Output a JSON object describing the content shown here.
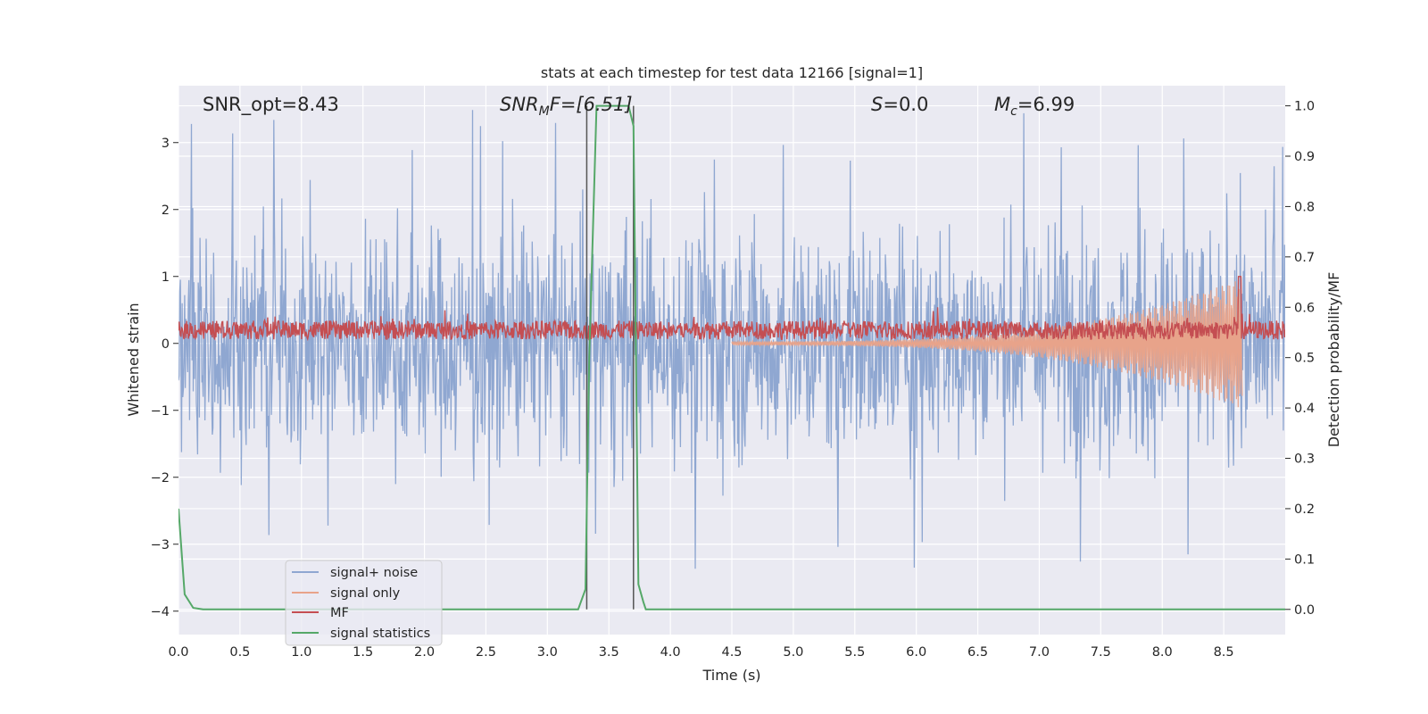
{
  "chart_data": {
    "type": "line",
    "title": "stats at each timestep for test data 12166 [signal=1]",
    "xlabel": "Time (s)",
    "ylabel_left": "Whitened strain",
    "ylabel_right": "Detection probability/MF",
    "xlim": [
      0.0,
      9.0
    ],
    "ylim_left": [
      -4.35,
      3.85
    ],
    "ylim_right": [
      -0.05,
      1.04
    ],
    "xticks": [
      "0.0",
      "0.5",
      "1.0",
      "1.5",
      "2.0",
      "2.5",
      "3.0",
      "3.5",
      "4.0",
      "4.5",
      "5.0",
      "5.5",
      "6.0",
      "6.5",
      "7.0",
      "7.5",
      "8.0",
      "8.5"
    ],
    "yticks_left": [
      "3",
      "2",
      "1",
      "0",
      "−1",
      "−2",
      "−3",
      "−4"
    ],
    "yticks_right": [
      "1.0",
      "0.9",
      "0.8",
      "0.7",
      "0.6",
      "0.5",
      "0.4",
      "0.3",
      "0.2",
      "0.1",
      "0.0"
    ],
    "grid": true,
    "annotations": {
      "snr_opt": "SNR_opt=8.43",
      "snr_mf_main": "SNR",
      "snr_mf_sub": "M",
      "snr_mf_rest": "F=[6.51]",
      "s_main": "S",
      "s_rest": "=0.0",
      "mc_main": "M",
      "mc_sub": "c",
      "mc_rest": "=6.99"
    },
    "vertical_markers": [
      3.32,
      3.7
    ],
    "legend": {
      "placement": "lower-left",
      "entries": [
        "signal+ noise",
        "signal only",
        "MF",
        "signal statistics"
      ]
    },
    "series": [
      {
        "name": "signal+ noise",
        "color": "#8fa7d1",
        "description_axis": "left",
        "envelope": {
          "typical": 1.9,
          "max_peak": 3.5,
          "min_peak": -3.95
        }
      },
      {
        "name": "signal only",
        "color": "#e8a38a",
        "description_axis": "left",
        "chirp": {
          "start": 4.5,
          "end": 8.65,
          "peak_amplitude": 0.95
        }
      },
      {
        "name": "MF",
        "color": "#c44e52",
        "description_axis": "left",
        "baseline": 0.2,
        "spike": {
          "x": 8.63,
          "y": 1.0
        }
      },
      {
        "name": "signal statistics",
        "color": "#55a868",
        "axis": "right",
        "x": [
          0.0,
          0.05,
          0.12,
          0.2,
          0.3,
          1.0,
          2.0,
          3.0,
          3.25,
          3.31,
          3.34,
          3.4,
          3.5,
          3.6,
          3.66,
          3.7,
          3.74,
          3.78,
          3.8,
          4.0,
          5.0,
          6.0,
          7.0,
          8.0,
          9.0
        ],
        "y": [
          0.2,
          0.03,
          0.003,
          0.0,
          0.0,
          0.0,
          0.0,
          0.0,
          0.0,
          0.04,
          0.5,
          1.0,
          1.0,
          1.0,
          1.0,
          0.96,
          0.05,
          0.015,
          0.0,
          0.0,
          0.0,
          0.0,
          0.0,
          0.0,
          0.0
        ]
      }
    ]
  }
}
